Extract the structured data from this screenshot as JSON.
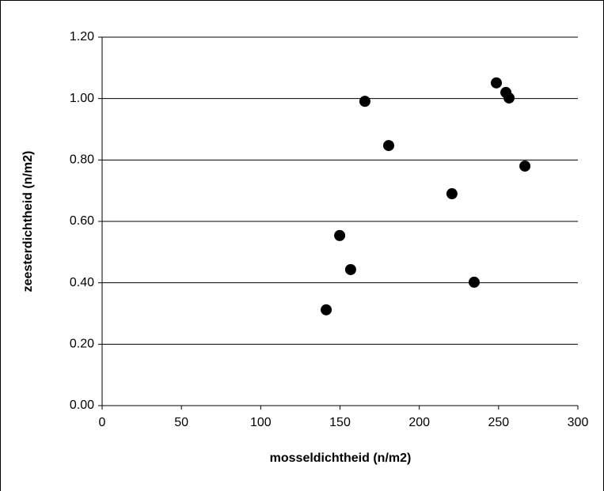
{
  "chart_data": {
    "type": "scatter",
    "x_label": "mosseldichtheid (n/m2)",
    "y_label": "zeesterdichtheid (n/m2)",
    "series": [
      {
        "color": "#000000",
        "x": [
          141.3,
          149.8,
          156.7,
          165.7,
          180.7,
          220.6,
          234.6,
          248.6,
          254.6,
          256.6,
          266.6
        ],
        "values": [
          0.312,
          0.554,
          0.443,
          0.991,
          0.847,
          0.69,
          0.402,
          1.051,
          1.02,
          1.002,
          0.78
        ]
      }
    ],
    "xlim": [
      0,
      300
    ],
    "xticks": [
      0,
      50,
      100,
      150,
      200,
      250,
      300
    ],
    "ylim": [
      0,
      1.2
    ],
    "yticks": [
      {
        "value": 0,
        "label": "0.00"
      },
      {
        "value": 0.2,
        "label": "0.20"
      },
      {
        "value": 0.4,
        "label": "0.40"
      },
      {
        "value": 0.6,
        "label": "0.60"
      },
      {
        "value": 0.8,
        "label": "0.80"
      },
      {
        "value": 1.0,
        "label": "1.00"
      },
      {
        "value": 1.2,
        "label": "1.20"
      }
    ],
    "grid": true
  }
}
